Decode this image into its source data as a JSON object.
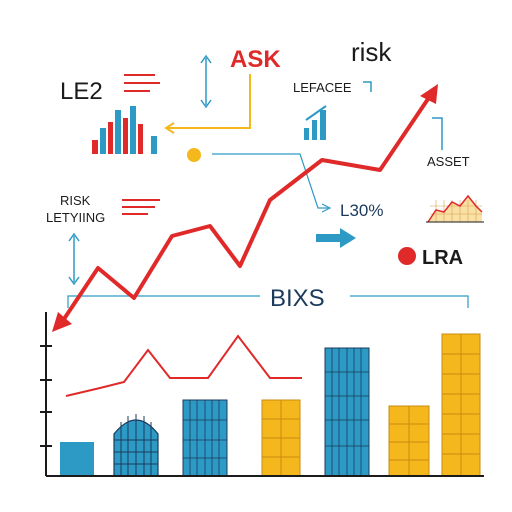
{
  "labels": {
    "ask": "ASK",
    "risk": "risk",
    "le2": "LE2",
    "leface": "LEFACEE",
    "asset": "ASSET",
    "risk_caps": "RISK",
    "letying": "LETYIING",
    "l30": "L30%",
    "lra": "LRA",
    "bixs": "BIXS"
  },
  "icons": {
    "text_lines_top": "text-lines-icon",
    "text_lines_left": "text-lines-icon",
    "mini_bar_chart": "bar-chart-icon",
    "mini_rising_bars": "rising-bars-icon",
    "mini_asset_chart": "area-chart-icon",
    "yellow_dot": "dot-icon",
    "red_dot": "dot-icon",
    "right_arrow": "right-arrow-icon",
    "double_arrow_top": "vertical-double-arrow-icon",
    "double_arrow_left": "vertical-double-arrow-icon"
  },
  "colors": {
    "red": "#e02a2a",
    "blue": "#2d9ac6",
    "yellow": "#f5b81c",
    "dark": "#1b1b1b",
    "navy": "#1b3a5c"
  }
}
